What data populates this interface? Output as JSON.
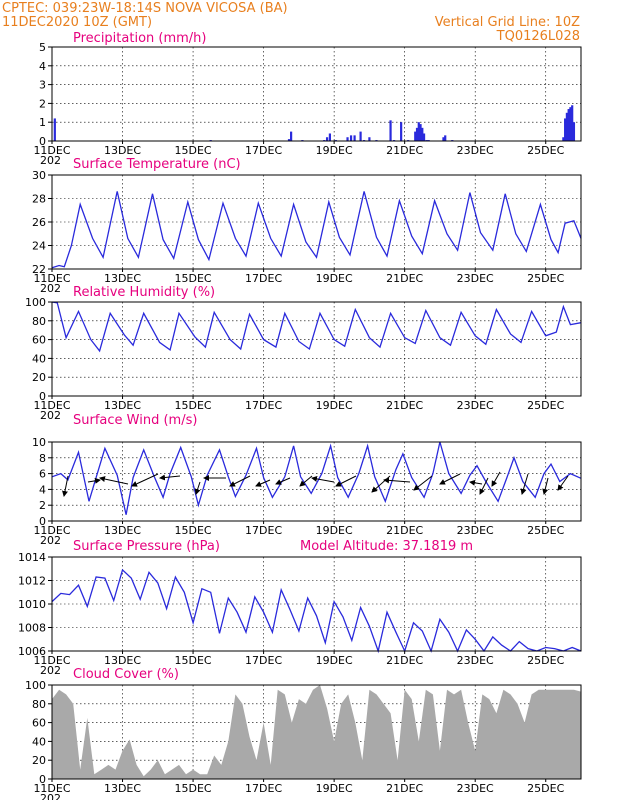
{
  "header": {
    "line1_left": "CPTEC:   039:23W-18:14S   NOVA VICOSA (BA)",
    "line2_left": "11DEC2020 10Z (GMT)",
    "line2_right": "Vertical Grid Line: 10Z",
    "line3_right": "TQ0126L028"
  },
  "colors": {
    "header": "#e87f1e",
    "title": "#e6007e",
    "line": "#2a2adc",
    "bars": "#2a2adc",
    "cloud": "#a9a9a9"
  },
  "x_axis": {
    "labels": [
      "11DEC",
      "13DEC",
      "15DEC",
      "17DEC",
      "19DEC",
      "21DEC",
      "23DEC",
      "25DEC"
    ],
    "subtext": "202",
    "range_days": [
      0,
      15
    ]
  },
  "chart_data": [
    {
      "id": "precip",
      "type": "bar",
      "title": "Precipitation (mm/h)",
      "ylim": [
        0,
        5
      ],
      "yticks": [
        0,
        1,
        2,
        3,
        4,
        5
      ],
      "x": [
        0.08,
        4.5,
        6.72,
        6.78,
        7.1,
        7.72,
        7.8,
        7.88,
        8.05,
        8.38,
        8.48,
        8.58,
        8.75,
        8.85,
        9.0,
        9.2,
        9.6,
        9.7,
        9.9,
        10.1,
        10.3,
        10.35,
        10.4,
        10.45,
        10.5,
        10.55,
        10.62,
        10.68,
        11.1,
        11.15,
        11.35,
        14.5,
        14.55,
        14.6,
        14.65,
        14.7,
        14.75,
        14.8
      ],
      "values": [
        1.2,
        0.05,
        0.1,
        0.5,
        0.05,
        0.05,
        0.2,
        0.4,
        0.05,
        0.2,
        0.3,
        0.3,
        0.5,
        0.05,
        0.2,
        0.05,
        1.1,
        0.05,
        1.0,
        0.05,
        0.5,
        0.7,
        1.0,
        0.9,
        0.7,
        0.4,
        0.05,
        0.05,
        0.2,
        0.3,
        0.05,
        0.2,
        1.2,
        1.5,
        1.7,
        1.8,
        1.9,
        1.0
      ]
    },
    {
      "id": "temp",
      "type": "line",
      "title": "Surface Temperature (nC)",
      "ylim": [
        22,
        30
      ],
      "yticks": [
        22,
        24,
        26,
        28,
        30
      ],
      "x": [
        0,
        0.2,
        0.35,
        0.55,
        0.8,
        1.15,
        1.45,
        1.85,
        2.15,
        2.45,
        2.85,
        3.15,
        3.45,
        3.85,
        4.15,
        4.45,
        4.85,
        5.2,
        5.5,
        5.85,
        6.2,
        6.5,
        6.85,
        7.2,
        7.5,
        7.85,
        8.15,
        8.45,
        8.85,
        9.2,
        9.5,
        9.85,
        10.2,
        10.5,
        10.85,
        11.2,
        11.5,
        11.85,
        12.15,
        12.5,
        12.85,
        13.15,
        13.45,
        13.85,
        14.15,
        14.35,
        14.55,
        14.8,
        15.0
      ],
      "values": [
        22.1,
        22.3,
        22.2,
        24.0,
        27.5,
        24.6,
        23.0,
        28.6,
        24.6,
        23.0,
        28.4,
        24.5,
        22.9,
        27.7,
        24.5,
        22.8,
        27.6,
        24.6,
        23.1,
        27.6,
        24.6,
        23.1,
        27.5,
        24.3,
        23.0,
        27.7,
        24.7,
        23.2,
        28.6,
        24.7,
        23.1,
        27.8,
        24.8,
        23.3,
        27.8,
        25.0,
        23.6,
        28.5,
        25.1,
        23.6,
        28.4,
        25.0,
        23.5,
        27.5,
        24.5,
        23.4,
        25.9,
        26.1,
        24.6
      ]
    },
    {
      "id": "rh",
      "type": "line",
      "title": "Relative Humidity (%)",
      "ylim": [
        0,
        100
      ],
      "yticks": [
        0,
        20,
        40,
        60,
        80,
        100
      ],
      "x": [
        0,
        0.15,
        0.4,
        0.75,
        1.1,
        1.35,
        1.65,
        2.05,
        2.3,
        2.6,
        3.05,
        3.35,
        3.6,
        4.05,
        4.35,
        4.6,
        5.05,
        5.35,
        5.6,
        6.0,
        6.35,
        6.6,
        7.0,
        7.3,
        7.6,
        8.0,
        8.3,
        8.6,
        9.0,
        9.3,
        9.6,
        10.0,
        10.3,
        10.6,
        11.0,
        11.3,
        11.6,
        12.0,
        12.3,
        12.6,
        13.0,
        13.3,
        13.6,
        14.0,
        14.3,
        14.5,
        14.7,
        15.0
      ],
      "values": [
        100,
        99,
        62,
        90,
        60,
        48,
        88,
        65,
        54,
        88,
        57,
        49,
        88,
        63,
        52,
        89,
        60,
        50,
        87,
        60,
        52,
        88,
        58,
        50,
        88,
        60,
        53,
        92,
        62,
        52,
        88,
        62,
        56,
        91,
        62,
        54,
        89,
        64,
        55,
        92,
        66,
        57,
        90,
        64,
        68,
        95,
        76,
        78
      ]
    },
    {
      "id": "wind",
      "type": "line",
      "title": "Surface Wind (m/s)",
      "ylim": [
        0,
        10
      ],
      "yticks": [
        0,
        2,
        4,
        6,
        8,
        10
      ],
      "x": [
        0,
        0.25,
        0.45,
        0.75,
        1.05,
        1.25,
        1.5,
        1.85,
        2.1,
        2.3,
        2.6,
        2.9,
        3.15,
        3.35,
        3.65,
        3.95,
        4.15,
        4.4,
        4.75,
        5.0,
        5.2,
        5.5,
        5.8,
        6.0,
        6.25,
        6.6,
        6.85,
        7.05,
        7.35,
        7.65,
        7.9,
        8.1,
        8.4,
        8.7,
        8.95,
        9.15,
        9.45,
        9.75,
        9.95,
        10.2,
        10.55,
        10.8,
        11.0,
        11.25,
        11.6,
        11.85,
        12.05,
        12.3,
        12.65,
        12.9,
        13.1,
        13.35,
        13.7,
        13.95,
        14.15,
        14.4,
        14.7,
        15.0
      ],
      "values": [
        5.6,
        6.0,
        5.2,
        8.7,
        2.5,
        5.5,
        9.2,
        5.8,
        0.8,
        5.5,
        9.0,
        5.6,
        3.0,
        6.0,
        9.3,
        5.6,
        2.0,
        5.8,
        9.0,
        5.6,
        3.1,
        5.8,
        9.2,
        5.5,
        3.0,
        5.6,
        9.5,
        5.6,
        3.5,
        6.0,
        9.5,
        5.5,
        3.0,
        6.0,
        9.5,
        5.6,
        2.5,
        6.5,
        8.5,
        5.5,
        3.0,
        6.0,
        10.0,
        6.0,
        3.5,
        5.8,
        7.0,
        5.0,
        2.5,
        5.5,
        8.0,
        5.0,
        3.0,
        6.0,
        7.2,
        5.0,
        6.0,
        5.4
      ]
    },
    {
      "id": "pressure",
      "type": "line",
      "title": "Surface Pressure (hPa)",
      "annotation": "Model Altitude: 37.1819 m",
      "ylim": [
        1006,
        1014
      ],
      "yticks": [
        1006,
        1008,
        1010,
        1012,
        1014
      ],
      "x": [
        0,
        0.25,
        0.5,
        0.75,
        1.0,
        1.25,
        1.5,
        1.75,
        2.0,
        2.25,
        2.5,
        2.75,
        3.0,
        3.25,
        3.5,
        3.75,
        4.0,
        4.25,
        4.5,
        4.75,
        5.0,
        5.25,
        5.5,
        5.75,
        6.0,
        6.25,
        6.5,
        6.75,
        7.0,
        7.25,
        7.5,
        7.75,
        8.0,
        8.25,
        8.5,
        8.75,
        9.0,
        9.25,
        9.5,
        9.75,
        10.0,
        10.25,
        10.5,
        10.75,
        11.0,
        11.25,
        11.5,
        11.75,
        12.0,
        12.25,
        12.5,
        12.75,
        13.0,
        13.25,
        13.5,
        13.75,
        14.0,
        14.25,
        14.5,
        14.75,
        15.0
      ],
      "values": [
        1010.2,
        1010.9,
        1010.8,
        1011.6,
        1009.8,
        1012.3,
        1012.2,
        1010.3,
        1012.9,
        1012.2,
        1010.4,
        1012.7,
        1011.8,
        1009.6,
        1012.3,
        1011.0,
        1008.4,
        1011.3,
        1011.0,
        1007.5,
        1010.5,
        1009.3,
        1007.6,
        1010.6,
        1009.3,
        1007.6,
        1011.2,
        1009.5,
        1007.7,
        1010.5,
        1009.0,
        1006.7,
        1010.2,
        1008.9,
        1006.9,
        1009.7,
        1008.1,
        1006.0,
        1009.3,
        1007.6,
        1006.0,
        1008.4,
        1007.7,
        1006.0,
        1008.7,
        1007.6,
        1006.0,
        1007.8,
        1007.0,
        1006.0,
        1007.2,
        1006.5,
        1006.0,
        1006.8,
        1006.2,
        1006.0,
        1006.3,
        1006.2,
        1006.0,
        1006.3,
        1006.0
      ]
    },
    {
      "id": "cloud",
      "type": "area",
      "title": "Cloud Cover (%)",
      "ylim": [
        0,
        100
      ],
      "yticks": [
        0,
        20,
        40,
        60,
        80,
        100
      ],
      "x": [
        0,
        0.2,
        0.4,
        0.6,
        0.8,
        1.0,
        1.2,
        1.4,
        1.6,
        1.8,
        2.0,
        2.2,
        2.4,
        2.6,
        2.8,
        3.0,
        3.2,
        3.4,
        3.6,
        3.8,
        4.0,
        4.2,
        4.4,
        4.6,
        4.8,
        5.0,
        5.2,
        5.4,
        5.6,
        5.8,
        6.0,
        6.2,
        6.4,
        6.6,
        6.8,
        7.0,
        7.2,
        7.4,
        7.6,
        7.8,
        8.0,
        8.2,
        8.4,
        8.6,
        8.8,
        9.0,
        9.2,
        9.4,
        9.6,
        9.8,
        10.0,
        10.2,
        10.4,
        10.6,
        10.8,
        11.0,
        11.2,
        11.4,
        11.6,
        11.8,
        12.0,
        12.2,
        12.4,
        12.6,
        12.8,
        13.0,
        13.2,
        13.4,
        13.6,
        13.8,
        14.0,
        14.2,
        14.4,
        14.6,
        14.8,
        15.0
      ],
      "values": [
        85,
        95,
        90,
        80,
        10,
        65,
        5,
        10,
        15,
        10,
        30,
        42,
        15,
        3,
        10,
        20,
        5,
        10,
        15,
        5,
        10,
        5,
        5,
        25,
        15,
        40,
        90,
        80,
        45,
        20,
        60,
        15,
        95,
        90,
        60,
        85,
        80,
        95,
        100,
        75,
        40,
        80,
        90,
        60,
        20,
        95,
        90,
        80,
        70,
        20,
        95,
        85,
        40,
        95,
        90,
        30,
        95,
        90,
        95,
        60,
        30,
        90,
        85,
        70,
        95,
        90,
        80,
        60,
        90,
        95,
        95,
        95,
        95,
        95,
        95,
        93
      ]
    }
  ]
}
